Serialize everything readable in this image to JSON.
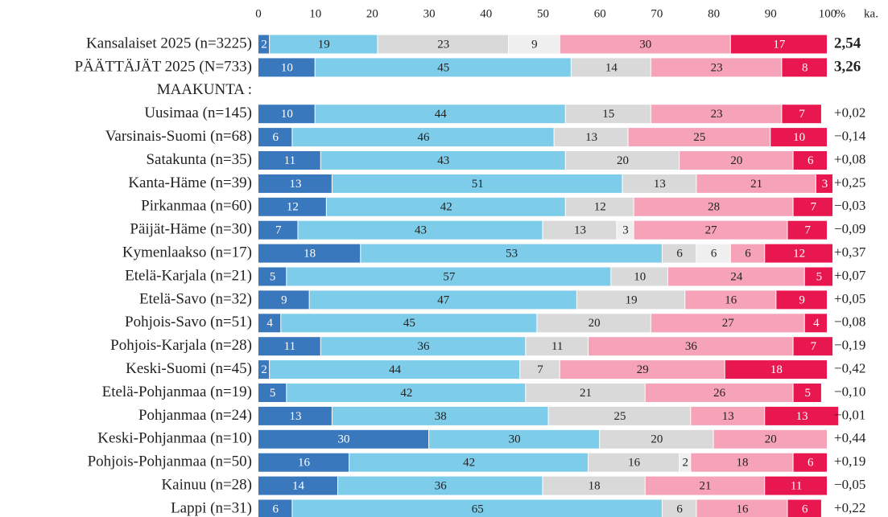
{
  "chart_data": {
    "type": "stacked_bar_horizontal",
    "x_label": "%",
    "side_header": "ka.",
    "xlim": [
      0,
      100
    ],
    "xticks": [
      0,
      10,
      20,
      30,
      40,
      50,
      60,
      70,
      80,
      90,
      100
    ],
    "categories": [
      "Kansalaiset 2025 (n=3225)",
      "PÄÄTTÄJÄT 2025 (N=733)",
      "MAAKUNTA :",
      "Uusimaa (n=145)",
      "Varsinais-Suomi (n=68)",
      "Satakunta (n=35)",
      "Kanta-Häme (n=39)",
      "Pirkanmaa (n=60)",
      "Päijät-Häme (n=30)",
      "Kymenlaakso (n=17)",
      "Etelä-Karjala (n=21)",
      "Etelä-Savo (n=32)",
      "Pohjois-Savo (n=51)",
      "Pohjois-Karjala (n=28)",
      "Keski-Suomi (n=45)",
      "Etelä-Pohjanmaa (n=19)",
      "Pohjanmaa (n=24)",
      "Keski-Pohjanmaa (n=10)",
      "Pohjois-Pohjanmaa (n=50)",
      "Kainuu (n=28)",
      "Lappi (n=31)"
    ],
    "series": [
      {
        "color": "#3a78bd",
        "values": [
          2,
          10,
          null,
          10,
          6,
          11,
          13,
          12,
          7,
          18,
          5,
          9,
          4,
          11,
          2,
          5,
          13,
          30,
          16,
          14,
          6
        ]
      },
      {
        "color": "#7dcdea",
        "values": [
          19,
          45,
          null,
          44,
          46,
          43,
          51,
          42,
          43,
          53,
          57,
          47,
          45,
          36,
          44,
          42,
          38,
          30,
          42,
          36,
          65
        ]
      },
      {
        "color": "#d9d9d9",
        "values": [
          23,
          14,
          null,
          15,
          13,
          20,
          13,
          12,
          13,
          6,
          10,
          19,
          20,
          11,
          7,
          21,
          25,
          20,
          16,
          18,
          6
        ]
      },
      {
        "color": "#efefef",
        "values": [
          9,
          null,
          null,
          null,
          null,
          null,
          null,
          null,
          3,
          6,
          null,
          null,
          null,
          null,
          null,
          null,
          null,
          null,
          2,
          null,
          null
        ]
      },
      {
        "color": "#f6a3b9",
        "values": [
          30,
          23,
          null,
          23,
          25,
          20,
          21,
          28,
          27,
          6,
          24,
          16,
          27,
          36,
          29,
          26,
          13,
          20,
          18,
          21,
          16
        ]
      },
      {
        "color": "#e8174f",
        "values": [
          17,
          8,
          null,
          7,
          10,
          6,
          3,
          7,
          7,
          12,
          5,
          9,
          4,
          7,
          18,
          5,
          13,
          null,
          6,
          11,
          6
        ]
      }
    ],
    "side_labels": [
      "2,54",
      "3,26",
      null,
      "+0,02",
      "−0,14",
      "+0,08",
      "+0,25",
      "−0,03",
      "−0,09",
      "+0,37",
      "+0,07",
      "+0,05",
      "−0,08",
      "−0,19",
      "−0,42",
      "−0,10",
      "−0,01",
      "+0,44",
      "+0,19",
      "−0,05",
      "+0,22"
    ]
  }
}
